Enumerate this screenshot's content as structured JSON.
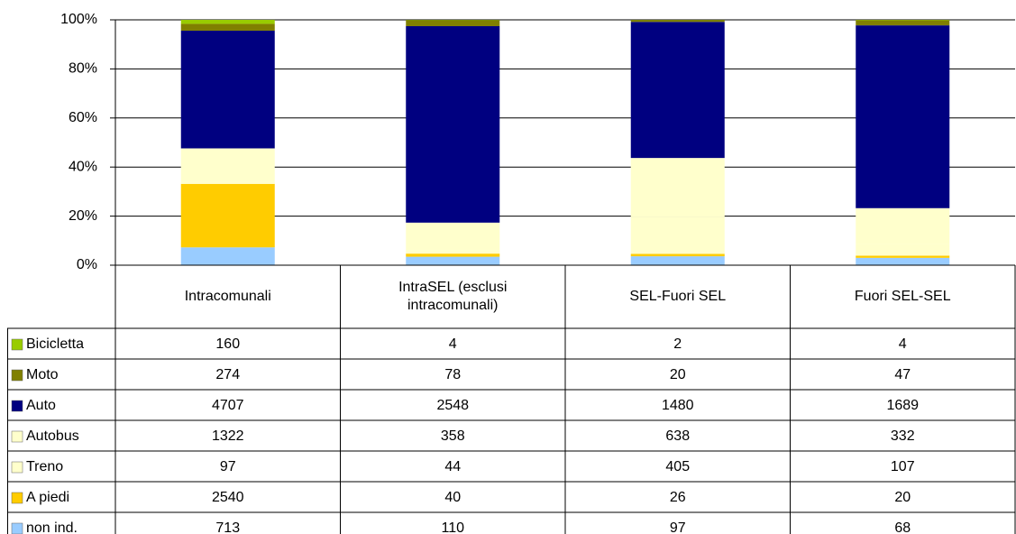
{
  "chart_data": {
    "type": "stacked_percent_bar",
    "categories": [
      "Intracomunali",
      "IntraSEL (esclusi intracomunali)",
      "SEL-Fuori SEL",
      "Fuori SEL-SEL"
    ],
    "series": [
      {
        "name": "Bicicletta",
        "color": "#99cc00",
        "values": [
          160,
          4,
          2,
          4
        ]
      },
      {
        "name": "Moto",
        "color": "#808000",
        "values": [
          274,
          78,
          20,
          47
        ]
      },
      {
        "name": "Auto",
        "color": "#000080",
        "values": [
          4707,
          2548,
          1480,
          1689
        ]
      },
      {
        "name": "Autobus",
        "color": "#ffffcc",
        "values": [
          1322,
          358,
          638,
          332
        ]
      },
      {
        "name": "Treno",
        "color": "#ffffcc",
        "values": [
          97,
          44,
          405,
          107
        ]
      },
      {
        "name": "A piedi",
        "color": "#ffcc00",
        "values": [
          2540,
          40,
          26,
          20
        ]
      },
      {
        "name": "non ind.",
        "color": "#99ccff",
        "values": [
          713,
          110,
          97,
          68
        ]
      }
    ],
    "ylim": [
      0,
      100
    ],
    "yticks": [
      {
        "value": 0,
        "label": "0%"
      },
      {
        "value": 20,
        "label": "20%"
      },
      {
        "value": 40,
        "label": "40%"
      },
      {
        "value": 60,
        "label": "60%"
      },
      {
        "value": 80,
        "label": "80%"
      },
      {
        "value": 100,
        "label": "100%"
      }
    ],
    "grid": true
  }
}
